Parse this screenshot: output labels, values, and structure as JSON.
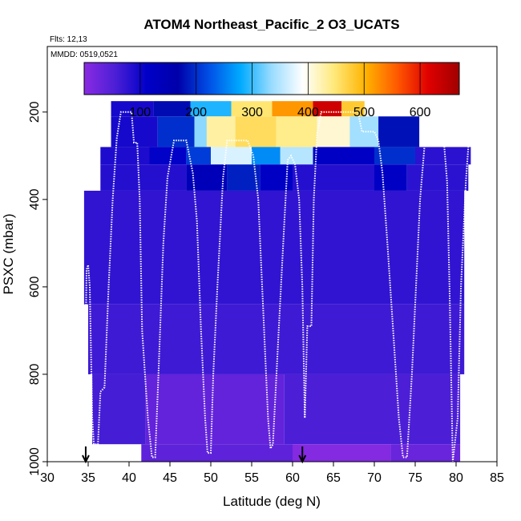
{
  "chart_data": {
    "type": "heatmap",
    "title": "ATOM4 Northeast_Pacific_2 O3_UCATS",
    "flights_label": "Flts: 12,13",
    "dates_label": "MMDD: 0519,0521",
    "xlabel": "Latitude (deg N)",
    "ylabel": "PSXC (mbar)",
    "xlim": [
      30,
      85
    ],
    "ylim": [
      1000,
      50
    ],
    "x_ticks": [
      30,
      35,
      40,
      45,
      50,
      55,
      60,
      65,
      70,
      75,
      80,
      85
    ],
    "y_ticks": [
      200,
      400,
      600,
      800,
      1000
    ],
    "colorbar": {
      "range": [
        0,
        670
      ],
      "ticks": [
        100,
        200,
        300,
        400,
        500,
        600
      ],
      "colors": [
        "#8a2be2",
        "#4b1fd6",
        "#0000c8",
        "#0000aa",
        "#0050e6",
        "#00aaff",
        "#9adcff",
        "#ffffff",
        "#ffe97a",
        "#ffb300",
        "#ff5a00",
        "#e00000",
        "#a00000"
      ]
    },
    "markers": [
      {
        "type": "down-arrow",
        "x": 34.7
      },
      {
        "type": "down-arrow",
        "x": 61.2
      }
    ],
    "cells": [
      {
        "x0": 37.8,
        "x1": 43.0,
        "y0": 175,
        "y1": 210,
        "v": 95
      },
      {
        "x0": 43.0,
        "x1": 47.5,
        "y0": 175,
        "y1": 210,
        "v": 175
      },
      {
        "x0": 47.5,
        "x1": 52.5,
        "y0": 175,
        "y1": 210,
        "v": 290
      },
      {
        "x0": 52.5,
        "x1": 57.5,
        "y0": 175,
        "y1": 210,
        "v": 450
      },
      {
        "x0": 57.5,
        "x1": 62.5,
        "y0": 175,
        "y1": 210,
        "v": 520
      },
      {
        "x0": 62.5,
        "x1": 66.0,
        "y0": 175,
        "y1": 210,
        "v": 630
      },
      {
        "x0": 66.0,
        "x1": 68.8,
        "y0": 175,
        "y1": 210,
        "v": 480
      },
      {
        "x0": 37.8,
        "x1": 43.5,
        "y0": 210,
        "y1": 280,
        "v": 95
      },
      {
        "x0": 43.5,
        "x1": 48.0,
        "y0": 210,
        "y1": 280,
        "v": 200
      },
      {
        "x0": 48.0,
        "x1": 49.5,
        "y0": 210,
        "y1": 280,
        "v": 330
      },
      {
        "x0": 49.5,
        "x1": 53.0,
        "y0": 210,
        "y1": 280,
        "v": 430
      },
      {
        "x0": 53.0,
        "x1": 58.0,
        "y0": 210,
        "y1": 280,
        "v": 460
      },
      {
        "x0": 58.0,
        "x1": 63.0,
        "y0": 210,
        "y1": 280,
        "v": 440
      },
      {
        "x0": 63.0,
        "x1": 67.0,
        "y0": 210,
        "y1": 280,
        "v": 410
      },
      {
        "x0": 67.0,
        "x1": 70.5,
        "y0": 210,
        "y1": 280,
        "v": 340
      },
      {
        "x0": 70.5,
        "x1": 75.5,
        "y0": 210,
        "y1": 280,
        "v": 180
      },
      {
        "x0": 36.5,
        "x1": 42.5,
        "y0": 280,
        "y1": 320,
        "v": 90
      },
      {
        "x0": 42.5,
        "x1": 47.0,
        "y0": 280,
        "y1": 320,
        "v": 110
      },
      {
        "x0": 47.0,
        "x1": 50.0,
        "y0": 280,
        "y1": 320,
        "v": 210
      },
      {
        "x0": 50.0,
        "x1": 55.0,
        "y0": 280,
        "y1": 320,
        "v": 370
      },
      {
        "x0": 55.0,
        "x1": 58.5,
        "y0": 280,
        "y1": 320,
        "v": 260
      },
      {
        "x0": 58.5,
        "x1": 62.5,
        "y0": 280,
        "y1": 320,
        "v": 350
      },
      {
        "x0": 62.5,
        "x1": 70.0,
        "y0": 280,
        "y1": 320,
        "v": 120
      },
      {
        "x0": 70.0,
        "x1": 75.0,
        "y0": 280,
        "y1": 320,
        "v": 200
      },
      {
        "x0": 75.0,
        "x1": 81.8,
        "y0": 280,
        "y1": 320,
        "v": 80
      },
      {
        "x0": 36.5,
        "x1": 47.0,
        "y0": 320,
        "y1": 380,
        "v": 85
      },
      {
        "x0": 47.0,
        "x1": 52.0,
        "y0": 320,
        "y1": 380,
        "v": 140
      },
      {
        "x0": 52.0,
        "x1": 56.0,
        "y0": 320,
        "y1": 380,
        "v": 190
      },
      {
        "x0": 56.0,
        "x1": 60.0,
        "y0": 320,
        "y1": 380,
        "v": 120
      },
      {
        "x0": 60.0,
        "x1": 70.0,
        "y0": 320,
        "y1": 380,
        "v": 85
      },
      {
        "x0": 70.0,
        "x1": 74.0,
        "y0": 320,
        "y1": 380,
        "v": 120
      },
      {
        "x0": 74.0,
        "x1": 81.5,
        "y0": 320,
        "y1": 380,
        "v": 80
      },
      {
        "x0": 34.5,
        "x1": 81.0,
        "y0": 380,
        "y1": 640,
        "v": 75
      },
      {
        "x0": 35.0,
        "x1": 81.0,
        "y0": 640,
        "y1": 800,
        "v": 65
      },
      {
        "x0": 35.5,
        "x1": 42.0,
        "y0": 800,
        "y1": 960,
        "v": 60
      },
      {
        "x0": 42.0,
        "x1": 59.0,
        "y0": 800,
        "y1": 960,
        "v": 35
      },
      {
        "x0": 59.0,
        "x1": 80.5,
        "y0": 800,
        "y1": 960,
        "v": 55
      },
      {
        "x0": 41.5,
        "x1": 60.0,
        "y0": 960,
        "y1": 1000,
        "v": 40
      },
      {
        "x0": 60.0,
        "x1": 72.0,
        "y0": 960,
        "y1": 1000,
        "v": 5
      },
      {
        "x0": 72.0,
        "x1": 80.5,
        "y0": 960,
        "y1": 1000,
        "v": 30
      }
    ],
    "series": [
      {
        "style": "white-dotted-line",
        "points": [
          [
            34.6,
            840
          ],
          [
            34.8,
            560
          ],
          [
            35.0,
            550
          ],
          [
            35.2,
            600
          ],
          [
            35.5,
            900
          ],
          [
            35.7,
            960
          ],
          [
            36.2,
            960
          ],
          [
            36.5,
            840
          ],
          [
            37.0,
            830
          ],
          [
            37.5,
            600
          ],
          [
            38.0,
            400
          ],
          [
            38.5,
            260
          ],
          [
            39.0,
            200
          ],
          [
            40.3,
            200
          ],
          [
            40.6,
            270
          ],
          [
            41.0,
            270
          ],
          [
            41.3,
            400
          ],
          [
            41.6,
            700
          ],
          [
            42.3,
            900
          ],
          [
            42.8,
            990
          ],
          [
            43.2,
            990
          ],
          [
            43.6,
            800
          ],
          [
            44.2,
            500
          ],
          [
            44.7,
            350
          ],
          [
            45.5,
            265
          ],
          [
            47.0,
            265
          ],
          [
            47.8,
            340
          ],
          [
            48.3,
            450
          ],
          [
            48.8,
            700
          ],
          [
            49.3,
            900
          ],
          [
            49.6,
            980
          ],
          [
            50.0,
            980
          ],
          [
            50.3,
            800
          ],
          [
            50.8,
            600
          ],
          [
            51.5,
            350
          ],
          [
            52.0,
            265
          ],
          [
            54.5,
            265
          ],
          [
            55.2,
            300
          ],
          [
            55.8,
            400
          ],
          [
            56.4,
            650
          ],
          [
            57.0,
            900
          ],
          [
            57.3,
            970
          ],
          [
            57.6,
            960
          ],
          [
            58.3,
            700
          ],
          [
            59.0,
            450
          ],
          [
            59.4,
            310
          ],
          [
            59.8,
            300
          ],
          [
            60.3,
            320
          ],
          [
            60.8,
            400
          ],
          [
            61.2,
            600
          ],
          [
            61.5,
            900
          ],
          [
            61.8,
            690
          ],
          [
            62.3,
            690
          ],
          [
            62.6,
            400
          ],
          [
            63.0,
            250
          ],
          [
            63.5,
            200
          ],
          [
            68.0,
            200
          ],
          [
            68.5,
            245
          ],
          [
            70.0,
            245
          ],
          [
            70.5,
            265
          ],
          [
            71.0,
            340
          ],
          [
            71.6,
            500
          ],
          [
            72.3,
            700
          ],
          [
            73.0,
            900
          ],
          [
            73.5,
            990
          ],
          [
            74.0,
            990
          ],
          [
            74.6,
            800
          ],
          [
            75.1,
            600
          ],
          [
            75.6,
            400
          ],
          [
            76.2,
            265
          ],
          [
            78.5,
            265
          ],
          [
            78.9,
            360
          ],
          [
            79.2,
            600
          ],
          [
            79.6,
            1000
          ],
          [
            80.2,
            900
          ],
          [
            80.6,
            600
          ],
          [
            81.2,
            360
          ],
          [
            81.5,
            280
          ]
        ]
      }
    ]
  }
}
